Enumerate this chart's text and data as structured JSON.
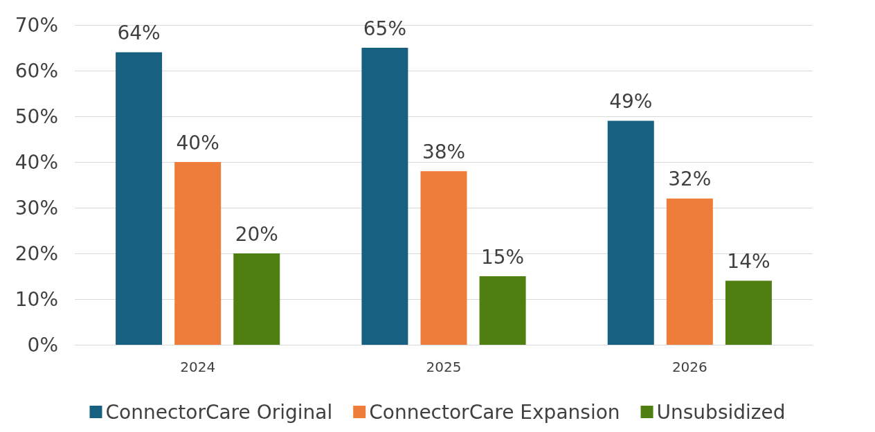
{
  "chart_data": {
    "type": "bar",
    "categories": [
      "2024",
      "2025",
      "2026"
    ],
    "series": [
      {
        "name": "ConnectorCare Original",
        "color": "#17607f",
        "values": [
          64,
          65,
          49
        ],
        "value_labels": [
          "64%",
          "65%",
          "49%"
        ]
      },
      {
        "name": "ConnectorCare Expansion",
        "color": "#ee7d3a",
        "values": [
          40,
          38,
          32
        ],
        "value_labels": [
          "40%",
          "38%",
          "32%"
        ]
      },
      {
        "name": "Unsubsidized",
        "color": "#4e7f10",
        "values": [
          20,
          15,
          14
        ],
        "value_labels": [
          "20%",
          "15%",
          "14%"
        ]
      }
    ],
    "ylim": [
      0,
      70
    ],
    "yticks": [
      {
        "value": 0,
        "label": "0%"
      },
      {
        "value": 10,
        "label": "10%"
      },
      {
        "value": 20,
        "label": "20%"
      },
      {
        "value": 30,
        "label": "30%"
      },
      {
        "value": 40,
        "label": "40%"
      },
      {
        "value": 50,
        "label": "50%"
      },
      {
        "value": 60,
        "label": "60%"
      },
      {
        "value": 70,
        "label": "70%"
      }
    ],
    "grid": "y",
    "legend": "bottom"
  }
}
